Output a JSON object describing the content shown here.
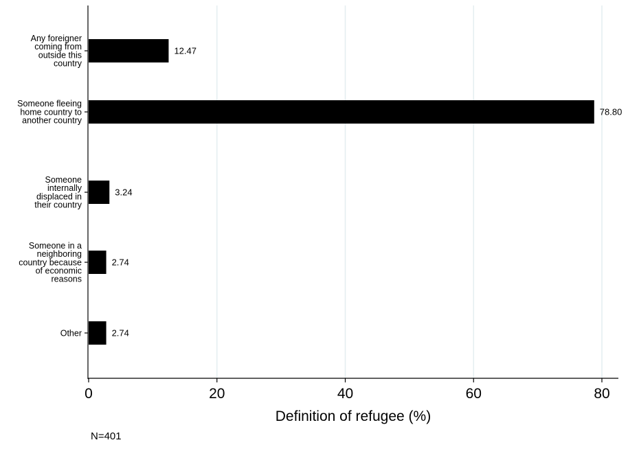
{
  "chart_data": {
    "type": "bar",
    "orientation": "horizontal",
    "categories": [
      [
        "Any foreigner",
        "coming from",
        "outside this",
        "country"
      ],
      [
        "Someone fleeing",
        "home country to",
        "another country"
      ],
      [
        "Someone",
        "internally",
        "displaced in",
        "their country"
      ],
      [
        "Someone in a",
        "neighboring",
        "country because",
        "of economic",
        "reasons"
      ],
      [
        "Other"
      ]
    ],
    "values": [
      12.47,
      78.8,
      3.24,
      2.74,
      2.74
    ],
    "value_labels": [
      "12.47",
      "78.80",
      "3.24",
      "2.74",
      "2.74"
    ],
    "xlabel": "Definition of refugee (%)",
    "xlim": [
      0,
      83
    ],
    "xticks": [
      0,
      20,
      40,
      60,
      80
    ],
    "grid": true,
    "colors": {
      "bar": "#000000",
      "grid": "#e4eef0",
      "axis": "#000000",
      "text": "#000000"
    }
  },
  "note": "N=401"
}
